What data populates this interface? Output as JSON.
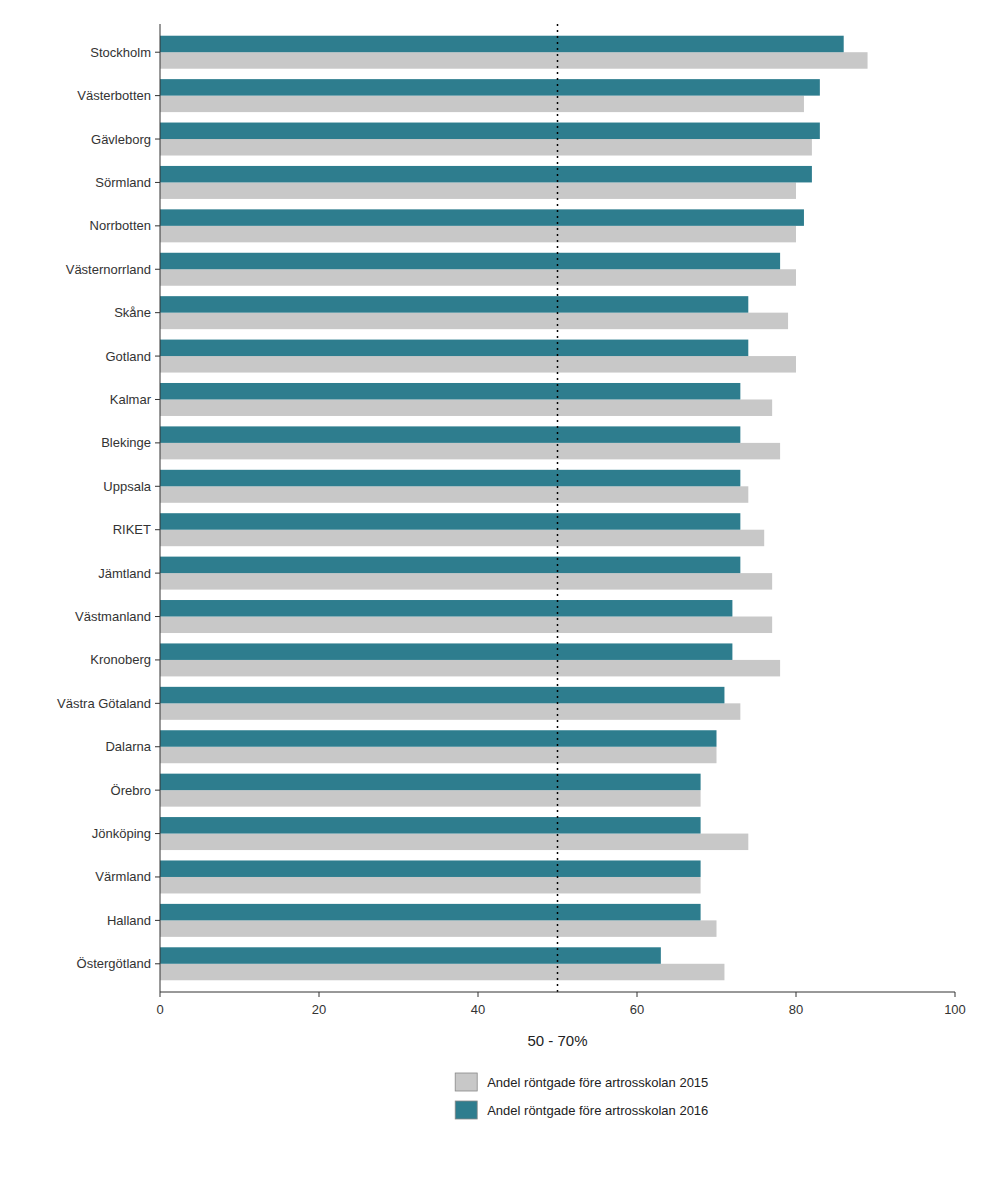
{
  "chart_data": {
    "type": "bar",
    "orientation": "horizontal",
    "categories": [
      "Stockholm",
      "Västerbotten",
      "Gävleborg",
      "Sörmland",
      "Norrbotten",
      "Västernorrland",
      "Skåne",
      "Gotland",
      "Kalmar",
      "Blekinge",
      "Uppsala",
      "RIKET",
      "Jämtland",
      "Västmanland",
      "Kronoberg",
      "Västra Götaland",
      "Dalarna",
      "Örebro",
      "Jönköping",
      "Värmland",
      "Halland",
      "Östergötland"
    ],
    "series": [
      {
        "name": "Andel röntgade före artrosskolan 2015",
        "color": "#c8c8c8",
        "values": [
          89,
          81,
          82,
          80,
          80,
          80,
          79,
          80,
          77,
          78,
          74,
          76,
          77,
          77,
          78,
          73,
          70,
          68,
          74,
          68,
          70,
          71
        ]
      },
      {
        "name": "Andel röntgade före artrosskolan 2016",
        "color": "#2e7d8e",
        "values": [
          86,
          83,
          83,
          82,
          81,
          78,
          74,
          74,
          73,
          73,
          73,
          73,
          73,
          72,
          72,
          71,
          70,
          68,
          68,
          68,
          68,
          63
        ]
      }
    ],
    "x_label": "50 - 70%",
    "xlim": [
      0,
      100
    ],
    "xticks": [
      0,
      20,
      40,
      60,
      80,
      100
    ],
    "reference_lines": [
      {
        "value": 50,
        "line_style": "dotted"
      }
    ],
    "grid": false,
    "legend": "bottom"
  }
}
